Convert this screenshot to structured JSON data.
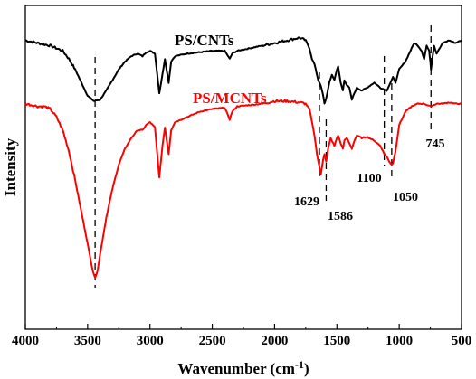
{
  "chart_data": {
    "type": "line",
    "xlabel": "Wavenumber (cm",
    "xlabel_sup": "-1",
    "xlabel_close": ")",
    "ylabel": "Intensity",
    "xlim": [
      4000,
      500
    ],
    "ylim": [
      0,
      100
    ],
    "x_reversed": true,
    "y_ticks_shown": false,
    "grid": false,
    "xticks": [
      4000,
      3500,
      3000,
      2500,
      2000,
      1500,
      1000,
      500
    ],
    "series": [
      {
        "name": "PS/CNTs",
        "color": "#000000",
        "points": [
          [
            4000,
            95
          ],
          [
            3900,
            94
          ],
          [
            3800,
            93
          ],
          [
            3700,
            91
          ],
          [
            3650,
            88
          ],
          [
            3600,
            84
          ],
          [
            3550,
            79
          ],
          [
            3500,
            74
          ],
          [
            3450,
            72
          ],
          [
            3400,
            72.5
          ],
          [
            3350,
            76
          ],
          [
            3300,
            80
          ],
          [
            3250,
            84
          ],
          [
            3200,
            87
          ],
          [
            3150,
            89
          ],
          [
            3100,
            90
          ],
          [
            3060,
            89
          ],
          [
            3030,
            90.5
          ],
          [
            3000,
            91
          ],
          [
            2960,
            90
          ],
          [
            2925,
            75
          ],
          [
            2900,
            82
          ],
          [
            2880,
            88
          ],
          [
            2850,
            79
          ],
          [
            2830,
            87
          ],
          [
            2800,
            89
          ],
          [
            2700,
            90
          ],
          [
            2600,
            90.5
          ],
          [
            2500,
            91
          ],
          [
            2400,
            91
          ],
          [
            2360,
            88
          ],
          [
            2340,
            90
          ],
          [
            2300,
            91
          ],
          [
            2200,
            92
          ],
          [
            2100,
            93
          ],
          [
            2000,
            94
          ],
          [
            1900,
            95
          ],
          [
            1800,
            96
          ],
          [
            1750,
            95
          ],
          [
            1720,
            92
          ],
          [
            1700,
            88
          ],
          [
            1680,
            86
          ],
          [
            1650,
            80
          ],
          [
            1630,
            78
          ],
          [
            1610,
            74
          ],
          [
            1600,
            71
          ],
          [
            1586,
            73
          ],
          [
            1560,
            79
          ],
          [
            1540,
            82
          ],
          [
            1520,
            80
          ],
          [
            1500,
            84
          ],
          [
            1490,
            85
          ],
          [
            1470,
            79
          ],
          [
            1452,
            76
          ],
          [
            1440,
            80
          ],
          [
            1420,
            78
          ],
          [
            1400,
            77
          ],
          [
            1380,
            72.5
          ],
          [
            1360,
            75
          ],
          [
            1340,
            77
          ],
          [
            1300,
            76
          ],
          [
            1260,
            77
          ],
          [
            1200,
            79
          ],
          [
            1150,
            77
          ],
          [
            1100,
            76
          ],
          [
            1080,
            78
          ],
          [
            1050,
            81
          ],
          [
            1030,
            79
          ],
          [
            1000,
            84
          ],
          [
            950,
            87
          ],
          [
            900,
            92
          ],
          [
            880,
            94
          ],
          [
            850,
            93
          ],
          [
            820,
            91
          ],
          [
            800,
            88
          ],
          [
            780,
            93
          ],
          [
            760,
            91
          ],
          [
            750,
            87
          ],
          [
            745,
            84
          ],
          [
            735,
            88
          ],
          [
            720,
            93
          ],
          [
            700,
            90
          ],
          [
            650,
            94
          ],
          [
            600,
            95
          ],
          [
            550,
            94
          ],
          [
            500,
            95
          ]
        ]
      },
      {
        "name": "PS/MCNTs",
        "color": "#ff0000",
        "points": [
          [
            4000,
            71
          ],
          [
            3900,
            70
          ],
          [
            3850,
            70
          ],
          [
            3800,
            69
          ],
          [
            3750,
            66
          ],
          [
            3700,
            61
          ],
          [
            3650,
            53
          ],
          [
            3600,
            42
          ],
          [
            3550,
            30
          ],
          [
            3500,
            18
          ],
          [
            3460,
            8
          ],
          [
            3440,
            5
          ],
          [
            3420,
            8
          ],
          [
            3400,
            14
          ],
          [
            3350,
            28
          ],
          [
            3300,
            39
          ],
          [
            3250,
            48
          ],
          [
            3200,
            54
          ],
          [
            3150,
            58
          ],
          [
            3100,
            61
          ],
          [
            3060,
            61
          ],
          [
            3030,
            63
          ],
          [
            3000,
            64
          ],
          [
            2960,
            62
          ],
          [
            2925,
            43
          ],
          [
            2900,
            55
          ],
          [
            2880,
            62
          ],
          [
            2850,
            52
          ],
          [
            2830,
            61
          ],
          [
            2800,
            64
          ],
          [
            2700,
            66
          ],
          [
            2600,
            68
          ],
          [
            2500,
            69
          ],
          [
            2400,
            69.5
          ],
          [
            2360,
            65
          ],
          [
            2340,
            68
          ],
          [
            2300,
            70
          ],
          [
            2200,
            70.5
          ],
          [
            2100,
            71
          ],
          [
            2000,
            72
          ],
          [
            1900,
            72
          ],
          [
            1800,
            71.5
          ],
          [
            1750,
            71
          ],
          [
            1720,
            69
          ],
          [
            1700,
            64
          ],
          [
            1680,
            59
          ],
          [
            1660,
            52
          ],
          [
            1640,
            47
          ],
          [
            1629,
            44
          ],
          [
            1610,
            50
          ],
          [
            1600,
            52
          ],
          [
            1586,
            49
          ],
          [
            1570,
            54
          ],
          [
            1550,
            58
          ],
          [
            1520,
            55
          ],
          [
            1500,
            58
          ],
          [
            1490,
            59
          ],
          [
            1470,
            56
          ],
          [
            1452,
            54
          ],
          [
            1440,
            57
          ],
          [
            1420,
            58
          ],
          [
            1400,
            56
          ],
          [
            1380,
            54
          ],
          [
            1360,
            57
          ],
          [
            1340,
            59
          ],
          [
            1300,
            58
          ],
          [
            1260,
            58.5
          ],
          [
            1200,
            57
          ],
          [
            1150,
            55
          ],
          [
            1120,
            52
          ],
          [
            1100,
            51
          ],
          [
            1080,
            49
          ],
          [
            1060,
            48
          ],
          [
            1050,
            48.5
          ],
          [
            1030,
            53
          ],
          [
            1000,
            63
          ],
          [
            950,
            68
          ],
          [
            900,
            70
          ],
          [
            850,
            71
          ],
          [
            800,
            71
          ],
          [
            750,
            70
          ],
          [
            700,
            71
          ],
          [
            650,
            71
          ],
          [
            600,
            71.5
          ],
          [
            550,
            71
          ],
          [
            500,
            71
          ]
        ]
      }
    ],
    "annotations": [
      {
        "text": "PS/CNTs",
        "series": 0
      },
      {
        "text": "PS/MCNTs",
        "series": 1
      },
      {
        "text": "1629",
        "x": 1629
      },
      {
        "text": "1586",
        "x": 1586
      },
      {
        "text": "1100",
        "x": 1100
      },
      {
        "text": "1050",
        "x": 1050
      },
      {
        "text": "745",
        "x": 745
      }
    ],
    "dashed_markers": [
      3440,
      1640,
      1586,
      1120,
      1060,
      745
    ]
  }
}
